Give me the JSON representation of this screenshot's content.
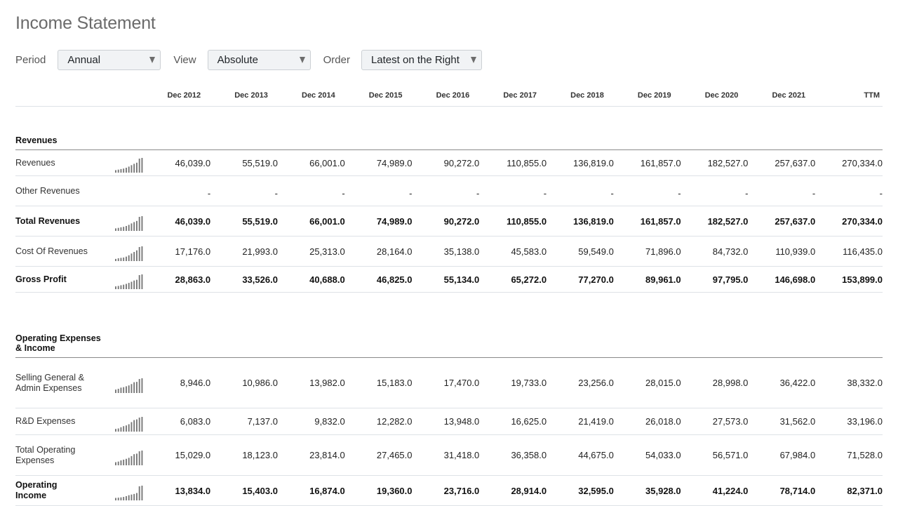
{
  "page_title": "Income Statement",
  "controls": {
    "period_label": "Period",
    "period_value": "Annual",
    "view_label": "View",
    "view_value": "Absolute",
    "order_label": "Order",
    "order_value": "Latest on the Right"
  },
  "columns": [
    "Dec 2012",
    "Dec 2013",
    "Dec 2014",
    "Dec 2015",
    "Dec 2016",
    "Dec 2017",
    "Dec 2018",
    "Dec 2019",
    "Dec 2020",
    "Dec 2021",
    "TTM"
  ],
  "sections": [
    {
      "title": "Revenues",
      "rows": [
        {
          "label": "Revenues",
          "bold": false,
          "spark": true,
          "values": [
            "46,039.0",
            "55,519.0",
            "66,001.0",
            "74,989.0",
            "90,272.0",
            "110,855.0",
            "136,819.0",
            "161,857.0",
            "182,527.0",
            "257,637.0",
            "270,334.0"
          ],
          "series": [
            46039,
            55519,
            66001,
            74989,
            90272,
            110855,
            136819,
            161857,
            182527,
            257637,
            270334
          ]
        },
        {
          "label": "Other Revenues",
          "bold": false,
          "spark": false,
          "values": [
            "-",
            "-",
            "-",
            "-",
            "-",
            "-",
            "-",
            "-",
            "-",
            "-",
            "-"
          ],
          "series": []
        },
        {
          "label": "Total Revenues",
          "bold": true,
          "spark": true,
          "values": [
            "46,039.0",
            "55,519.0",
            "66,001.0",
            "74,989.0",
            "90,272.0",
            "110,855.0",
            "136,819.0",
            "161,857.0",
            "182,527.0",
            "257,637.0",
            "270,334.0"
          ],
          "series": [
            46039,
            55519,
            66001,
            74989,
            90272,
            110855,
            136819,
            161857,
            182527,
            257637,
            270334
          ]
        },
        {
          "label": "Cost Of Revenues",
          "bold": false,
          "spark": true,
          "values": [
            "17,176.0",
            "21,993.0",
            "25,313.0",
            "28,164.0",
            "35,138.0",
            "45,583.0",
            "59,549.0",
            "71,896.0",
            "84,732.0",
            "110,939.0",
            "116,435.0"
          ],
          "series": [
            17176,
            21993,
            25313,
            28164,
            35138,
            45583,
            59549,
            71896,
            84732,
            110939,
            116435
          ]
        },
        {
          "label": "Gross Profit",
          "bold": true,
          "spark": true,
          "values": [
            "28,863.0",
            "33,526.0",
            "40,688.0",
            "46,825.0",
            "55,134.0",
            "65,272.0",
            "77,270.0",
            "89,961.0",
            "97,795.0",
            "146,698.0",
            "153,899.0"
          ],
          "series": [
            28863,
            33526,
            40688,
            46825,
            55134,
            65272,
            77270,
            89961,
            97795,
            146698,
            153899
          ]
        }
      ]
    },
    {
      "title": "Operating Expenses & Income",
      "rows": [
        {
          "label": "Selling General & Admin Expenses",
          "bold": false,
          "spark": true,
          "values": [
            "8,946.0",
            "10,986.0",
            "13,982.0",
            "15,183.0",
            "17,470.0",
            "19,733.0",
            "23,256.0",
            "28,015.0",
            "28,998.0",
            "36,422.0",
            "38,332.0"
          ],
          "series": [
            8946,
            10986,
            13982,
            15183,
            17470,
            19733,
            23256,
            28015,
            28998,
            36422,
            38332
          ]
        },
        {
          "label": "R&D Expenses",
          "bold": false,
          "spark": true,
          "values": [
            "6,083.0",
            "7,137.0",
            "9,832.0",
            "12,282.0",
            "13,948.0",
            "16,625.0",
            "21,419.0",
            "26,018.0",
            "27,573.0",
            "31,562.0",
            "33,196.0"
          ],
          "series": [
            6083,
            7137,
            9832,
            12282,
            13948,
            16625,
            21419,
            26018,
            27573,
            31562,
            33196
          ]
        },
        {
          "label": "Total Operating Expenses",
          "bold": false,
          "spark": true,
          "values": [
            "15,029.0",
            "18,123.0",
            "23,814.0",
            "27,465.0",
            "31,418.0",
            "36,358.0",
            "44,675.0",
            "54,033.0",
            "56,571.0",
            "67,984.0",
            "71,528.0"
          ],
          "series": [
            15029,
            18123,
            23814,
            27465,
            31418,
            36358,
            44675,
            54033,
            56571,
            67984,
            71528
          ]
        },
        {
          "label": "Operating Income",
          "bold": true,
          "spark": true,
          "values": [
            "13,834.0",
            "15,403.0",
            "16,874.0",
            "19,360.0",
            "23,716.0",
            "28,914.0",
            "32,595.0",
            "35,928.0",
            "41,224.0",
            "78,714.0",
            "82,371.0"
          ],
          "series": [
            13834,
            15403,
            16874,
            19360,
            23716,
            28914,
            32595,
            35928,
            41224,
            78714,
            82371
          ]
        }
      ]
    }
  ]
}
